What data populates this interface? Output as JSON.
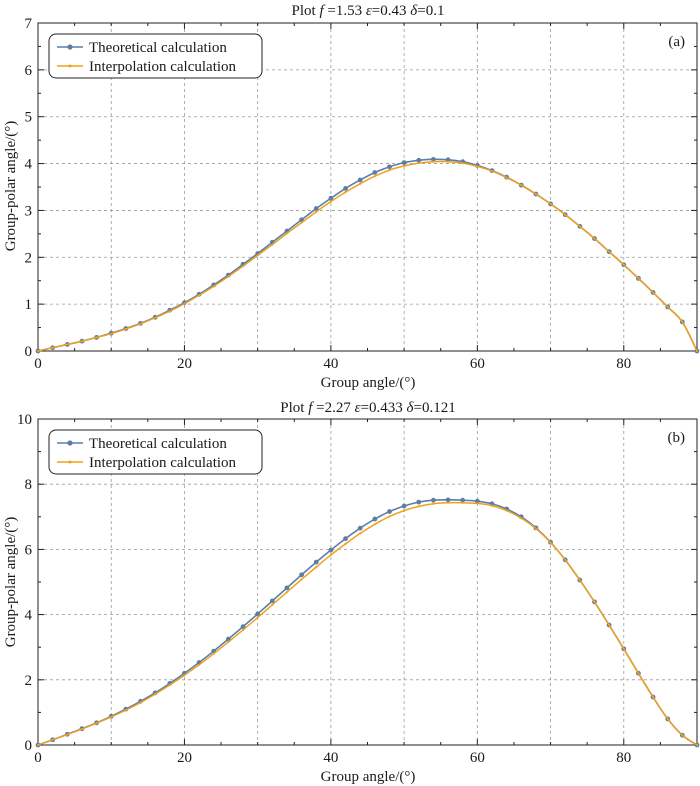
{
  "figure": {
    "panels": [
      {
        "tag": "(a)",
        "title": {
          "prefix": "Plot ",
          "f_symbol": "f",
          "f_value": " =1.53 ",
          "eps_symbol": "ε",
          "eps_value": "=0.43 ",
          "delta_symbol": "δ",
          "delta_value": "=0.1"
        },
        "xlabel": "Group angle/(°)",
        "ylabel": "Group-polar angle/(°)"
      },
      {
        "tag": "(b)",
        "title": {
          "prefix": "Plot ",
          "f_symbol": "f",
          "f_value": " =2.27 ",
          "eps_symbol": "ε",
          "eps_value": "=0.433 ",
          "delta_symbol": "δ",
          "delta_value": "=0.121"
        },
        "xlabel": "Group angle/(°)",
        "ylabel": "Group-polar angle/(°)"
      }
    ]
  },
  "colors": {
    "theoretical": "#5b7fa6",
    "interpolation": "#f0a11e",
    "grid": "#9a9a9a",
    "frame": "#222222"
  },
  "chart_data": [
    {
      "type": "line",
      "title": "Plot f =1.53 ε=0.43 δ=0.1",
      "xlabel": "Group angle/(°)",
      "ylabel": "Group-polar angle/(°)",
      "xlim": [
        0,
        90
      ],
      "ylim": [
        0,
        7
      ],
      "xticks": [
        0,
        20,
        40,
        60,
        80
      ],
      "yticks": [
        0,
        1,
        2,
        3,
        4,
        5,
        6,
        7
      ],
      "grid": true,
      "legend": "top-left",
      "annotation": "(a)",
      "series": [
        {
          "name": "Theoretical calculation",
          "marker": "circle",
          "x": [
            0,
            2,
            4,
            6,
            8,
            10,
            12,
            14,
            16,
            18,
            20,
            22,
            24,
            26,
            28,
            30,
            32,
            34,
            36,
            38,
            40,
            42,
            44,
            46,
            48,
            50,
            52,
            54,
            56,
            58,
            60,
            62,
            64,
            66,
            68,
            70,
            72,
            74,
            76,
            78,
            80,
            82,
            84,
            86,
            88,
            90
          ],
          "y": [
            0,
            0.07,
            0.14,
            0.21,
            0.29,
            0.38,
            0.48,
            0.59,
            0.72,
            0.87,
            1.03,
            1.21,
            1.41,
            1.62,
            1.85,
            2.08,
            2.32,
            2.56,
            2.8,
            3.04,
            3.26,
            3.47,
            3.65,
            3.81,
            3.93,
            4.02,
            4.07,
            4.09,
            4.08,
            4.04,
            3.96,
            3.85,
            3.71,
            3.54,
            3.35,
            3.14,
            2.91,
            2.66,
            2.4,
            2.12,
            1.84,
            1.55,
            1.25,
            0.94,
            0.62,
            0.0
          ]
        },
        {
          "name": "Interpolation calculation",
          "marker": "small-dot",
          "x": [
            0,
            2,
            4,
            6,
            8,
            10,
            12,
            14,
            16,
            18,
            20,
            22,
            24,
            26,
            28,
            30,
            32,
            34,
            36,
            38,
            40,
            42,
            44,
            46,
            48,
            50,
            52,
            54,
            56,
            58,
            60,
            62,
            64,
            66,
            68,
            70,
            72,
            74,
            76,
            78,
            80,
            82,
            84,
            86,
            88,
            90
          ],
          "y": [
            0,
            0.07,
            0.14,
            0.21,
            0.29,
            0.37,
            0.47,
            0.58,
            0.71,
            0.85,
            1.01,
            1.19,
            1.38,
            1.59,
            1.81,
            2.04,
            2.27,
            2.51,
            2.74,
            2.97,
            3.19,
            3.39,
            3.57,
            3.73,
            3.86,
            3.95,
            4.01,
            4.04,
            4.04,
            4.01,
            3.94,
            3.84,
            3.7,
            3.54,
            3.35,
            3.14,
            2.91,
            2.66,
            2.4,
            2.12,
            1.84,
            1.55,
            1.25,
            0.94,
            0.62,
            0.0
          ]
        }
      ]
    },
    {
      "type": "line",
      "title": "Plot f =2.27 ε=0.433 δ=0.121",
      "xlabel": "Group angle/(°)",
      "ylabel": "Group-polar angle/(°)",
      "xlim": [
        0,
        90
      ],
      "ylim": [
        0,
        10
      ],
      "xticks": [
        0,
        20,
        40,
        60,
        80
      ],
      "yticks": [
        0,
        2,
        4,
        6,
        8,
        10
      ],
      "grid": true,
      "legend": "top-left",
      "annotation": "(b)",
      "series": [
        {
          "name": "Theoretical calculation",
          "marker": "circle",
          "x": [
            0,
            2,
            4,
            6,
            8,
            10,
            12,
            14,
            16,
            18,
            20,
            22,
            24,
            26,
            28,
            30,
            32,
            34,
            36,
            38,
            40,
            42,
            44,
            46,
            48,
            50,
            52,
            54,
            56,
            58,
            60,
            62,
            64,
            66,
            68,
            70,
            72,
            74,
            76,
            78,
            80,
            82,
            84,
            86,
            88,
            90
          ],
          "y": [
            0,
            0.16,
            0.33,
            0.5,
            0.68,
            0.88,
            1.1,
            1.34,
            1.6,
            1.89,
            2.2,
            2.53,
            2.88,
            3.25,
            3.63,
            4.02,
            4.42,
            4.82,
            5.22,
            5.61,
            5.98,
            6.33,
            6.65,
            6.93,
            7.16,
            7.33,
            7.45,
            7.51,
            7.52,
            7.51,
            7.48,
            7.4,
            7.24,
            7.0,
            6.66,
            6.22,
            5.68,
            5.06,
            4.39,
            3.68,
            2.95,
            2.2,
            1.47,
            0.8,
            0.3,
            0.0
          ]
        },
        {
          "name": "Interpolation calculation",
          "marker": "small-dot",
          "x": [
            0,
            2,
            4,
            6,
            8,
            10,
            12,
            14,
            16,
            18,
            20,
            22,
            24,
            26,
            28,
            30,
            32,
            34,
            36,
            38,
            40,
            42,
            44,
            46,
            48,
            50,
            52,
            54,
            56,
            58,
            60,
            62,
            64,
            66,
            68,
            70,
            72,
            74,
            76,
            78,
            80,
            82,
            84,
            86,
            88,
            90
          ],
          "y": [
            0,
            0.16,
            0.32,
            0.49,
            0.67,
            0.86,
            1.07,
            1.3,
            1.56,
            1.84,
            2.14,
            2.46,
            2.8,
            3.16,
            3.53,
            3.91,
            4.3,
            4.69,
            5.08,
            5.46,
            5.83,
            6.17,
            6.49,
            6.77,
            7.01,
            7.19,
            7.32,
            7.4,
            7.43,
            7.43,
            7.41,
            7.34,
            7.19,
            6.96,
            6.64,
            6.21,
            5.68,
            5.06,
            4.39,
            3.68,
            2.95,
            2.2,
            1.47,
            0.8,
            0.3,
            0.0
          ]
        }
      ]
    }
  ]
}
